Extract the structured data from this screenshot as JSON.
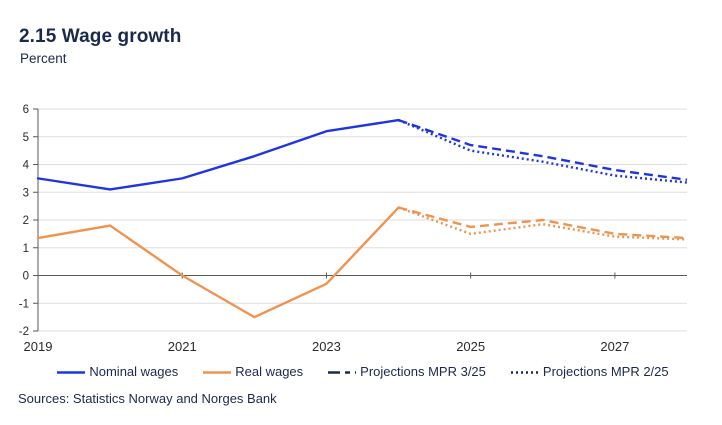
{
  "header": {
    "title": "2.15 Wage growth",
    "subtitle": "Percent"
  },
  "footer": {
    "sources": "Sources: Statistics Norway and Norges Bank"
  },
  "colors": {
    "navy": "#1b2a4a",
    "blue": "#1e35e0",
    "orange": "#ef9350",
    "grid": "#dedede",
    "zero_axis": "#595959",
    "spine": "#595959",
    "tick_text": "#2b2b2b"
  },
  "chart_data": {
    "type": "line",
    "title": "2.15 Wage growth",
    "ylabel": "Percent",
    "xlim": [
      2019,
      2028
    ],
    "ylim": [
      -2,
      6
    ],
    "yticks": [
      -2,
      -1,
      0,
      1,
      2,
      3,
      4,
      5,
      6
    ],
    "xticks": [
      2019,
      2021,
      2023,
      2025,
      2027
    ],
    "grid": true,
    "legend_position": "bottom-center",
    "legend": [
      {
        "label": "Nominal wages",
        "color": "#1e35e0",
        "style": "solid"
      },
      {
        "label": "Real wages",
        "color": "#ef9350",
        "style": "solid"
      },
      {
        "label": "Projections MPR 3/25",
        "color": "#1b2a4a",
        "style": "dashed"
      },
      {
        "label": "Projections MPR 2/25",
        "color": "#1b2a4a",
        "style": "dotted"
      }
    ],
    "lines": [
      {
        "series": "Nominal wages",
        "style": "solid",
        "color": "#1e35e0",
        "x": [
          2019,
          2020,
          2021,
          2022,
          2023,
          2024
        ],
        "y": [
          3.5,
          3.1,
          3.5,
          4.3,
          5.2,
          5.6
        ]
      },
      {
        "series": "Real wages",
        "style": "solid",
        "color": "#ef9350",
        "x": [
          2019,
          2020,
          2021,
          2022,
          2023,
          2024
        ],
        "y": [
          1.35,
          1.8,
          0.0,
          -1.5,
          -0.3,
          2.45
        ]
      },
      {
        "series": "Projections MPR 3/25 (nominal)",
        "style": "dashed",
        "color": "#1e35e0",
        "x": [
          2024,
          2025,
          2026,
          2027,
          2028
        ],
        "y": [
          5.6,
          4.7,
          4.3,
          3.8,
          3.45
        ]
      },
      {
        "series": "Projections MPR 3/25 (real)",
        "style": "dashed",
        "color": "#ef9350",
        "x": [
          2024,
          2025,
          2026,
          2027,
          2028
        ],
        "y": [
          2.45,
          1.75,
          2.0,
          1.5,
          1.35
        ]
      },
      {
        "series": "Projections MPR 2/25 (nominal)",
        "style": "dotted",
        "color": "#1e35e0",
        "x": [
          2024,
          2025,
          2026,
          2027,
          2028
        ],
        "y": [
          5.6,
          4.5,
          4.1,
          3.6,
          3.35
        ]
      },
      {
        "series": "Projections MPR 2/25 (real)",
        "style": "dotted",
        "color": "#ef9350",
        "x": [
          2024,
          2025,
          2026,
          2027,
          2028
        ],
        "y": [
          2.45,
          1.5,
          1.85,
          1.4,
          1.3
        ]
      }
    ]
  }
}
